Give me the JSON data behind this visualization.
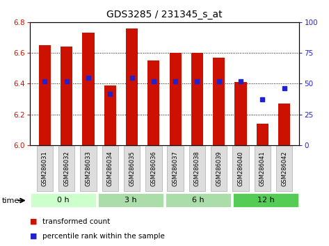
{
  "title": "GDS3285 / 231345_s_at",
  "samples": [
    "GSM286031",
    "GSM286032",
    "GSM286033",
    "GSM286034",
    "GSM286035",
    "GSM286036",
    "GSM286037",
    "GSM286038",
    "GSM286039",
    "GSM286040",
    "GSM286041",
    "GSM286042"
  ],
  "transformed_count": [
    6.65,
    6.64,
    6.73,
    6.39,
    6.76,
    6.55,
    6.6,
    6.6,
    6.57,
    6.41,
    6.14,
    6.27
  ],
  "percentile_rank": [
    52,
    52,
    55,
    42,
    55,
    52,
    52,
    52,
    52,
    52,
    37,
    46
  ],
  "ylim_left": [
    6.0,
    6.8
  ],
  "ylim_right": [
    0,
    100
  ],
  "yticks_left": [
    6.0,
    6.2,
    6.4,
    6.6,
    6.8
  ],
  "yticks_right": [
    0,
    25,
    50,
    75,
    100
  ],
  "bar_color": "#cc1100",
  "dot_color": "#2222cc",
  "bar_bottom": 6.0,
  "time_labels": [
    "0 h",
    "3 h",
    "6 h",
    "12 h"
  ],
  "time_boundaries": [
    0,
    3,
    6,
    9,
    12
  ],
  "time_colors": [
    "#ccffcc",
    "#aaddaa",
    "#aaddaa",
    "#55cc55"
  ],
  "legend_bar_label": "transformed count",
  "legend_dot_label": "percentile rank within the sample",
  "time_label": "time",
  "background_color": "#ffffff"
}
